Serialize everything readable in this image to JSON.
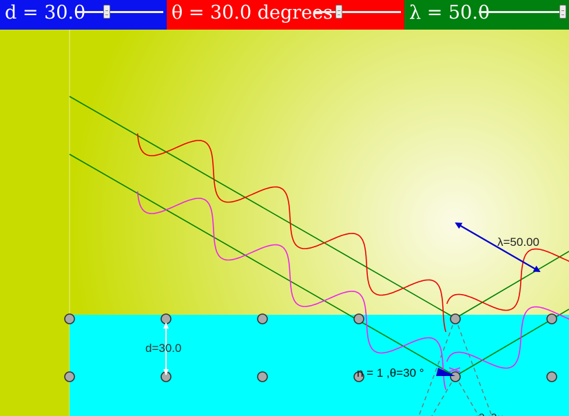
{
  "toolbar": {
    "d_control": {
      "label": "d = 30.0",
      "value": 30.0,
      "color": "#0a12f0"
    },
    "theta_control": {
      "label": "θ = 30.0 degrees",
      "value": 30.0,
      "color": "#ff0000"
    },
    "lambda_control": {
      "label": "λ = 50.0",
      "value": 50.0,
      "color": "#00800f"
    }
  },
  "scene": {
    "colors": {
      "background_outer": "#c8dc00",
      "background_glow": "#fbfbe6",
      "crystal": "#00ffff",
      "ray": "#008000",
      "wave_top": "#ee0000",
      "wave_bottom": "#ee22ee",
      "lambda_arrow": "#0000cc",
      "atom": "#aaaaaa"
    },
    "spacing_label": "d=30.0",
    "wavelength_label": "λ=50.00",
    "bragg_label": "n = 1 ,θ=30 °",
    "bottom_label_partial": "·ɔ ·ɔ··"
  }
}
